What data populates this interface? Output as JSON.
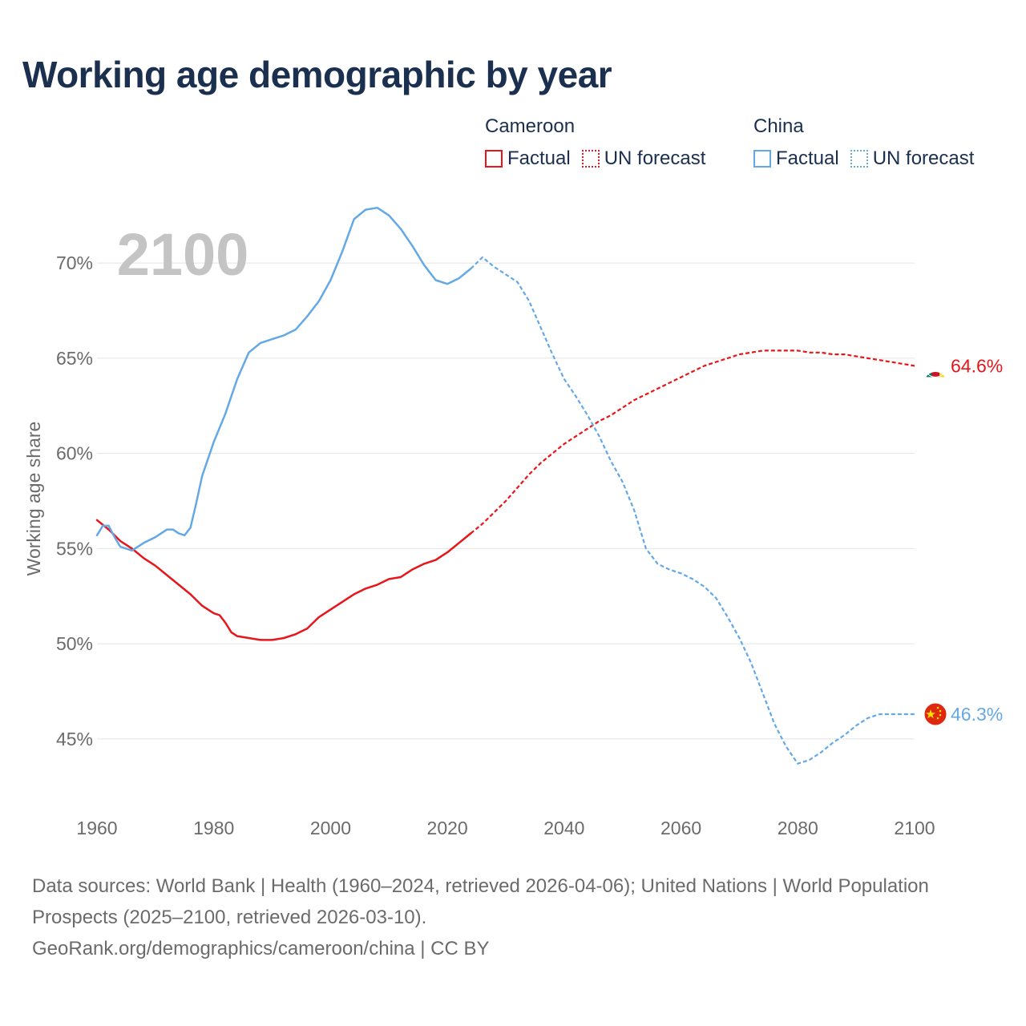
{
  "title": "Working age demographic by year",
  "legend": {
    "groups": [
      {
        "name": "Cameroon",
        "color": "#e8161a",
        "items": [
          {
            "label": "Factual",
            "style": "solid"
          },
          {
            "label": "UN forecast",
            "style": "dotted"
          }
        ]
      },
      {
        "name": "China",
        "color": "#64a8e6",
        "items": [
          {
            "label": "Factual",
            "style": "solid"
          },
          {
            "label": "UN forecast",
            "style": "dotted"
          }
        ]
      }
    ]
  },
  "footer": {
    "sources": "Data sources: World Bank | Health (1960–2024, retrieved 2026-04-06); United Nations | World Population Prospects (2025–2100, retrieved 2026-03-10).",
    "attribution": "GeoRank.org/demographics/cameroon/china | CC BY"
  },
  "chart_data": {
    "type": "line",
    "title": "Working age demographic by year",
    "year_watermark": "2100",
    "xlabel": "",
    "ylabel": "Working age share",
    "xlim": [
      1960,
      2100
    ],
    "ylim": [
      41.5,
      73.5
    ],
    "xticks": [
      1960,
      1980,
      2000,
      2020,
      2040,
      2060,
      2080,
      2100
    ],
    "yticks": [
      45,
      50,
      55,
      60,
      65,
      70
    ],
    "ytick_labels": [
      "45%",
      "50%",
      "55%",
      "60%",
      "65%",
      "70%"
    ],
    "grid": true,
    "factual_end": 2024,
    "series": [
      {
        "name": "Cameroon",
        "color": "#e8161a",
        "end_label": "64.6%",
        "flag": "cameroon-flag",
        "x": [
          1960,
          1962,
          1964,
          1966,
          1968,
          1970,
          1972,
          1974,
          1976,
          1978,
          1980,
          1981,
          1982,
          1983,
          1984,
          1986,
          1988,
          1990,
          1992,
          1994,
          1996,
          1998,
          2000,
          2002,
          2004,
          2006,
          2008,
          2010,
          2012,
          2014,
          2016,
          2018,
          2020,
          2022,
          2024,
          2026,
          2028,
          2030,
          2032,
          2034,
          2036,
          2038,
          2040,
          2042,
          2044,
          2046,
          2048,
          2050,
          2052,
          2054,
          2056,
          2058,
          2060,
          2062,
          2064,
          2066,
          2068,
          2070,
          2072,
          2074,
          2076,
          2078,
          2080,
          2082,
          2084,
          2086,
          2088,
          2090,
          2092,
          2094,
          2096,
          2098,
          2100
        ],
        "y": [
          56.5,
          56.0,
          55.4,
          55.0,
          54.5,
          54.1,
          53.6,
          53.1,
          52.6,
          52.0,
          51.6,
          51.5,
          51.1,
          50.6,
          50.4,
          50.3,
          50.2,
          50.2,
          50.3,
          50.5,
          50.8,
          51.4,
          51.8,
          52.2,
          52.6,
          52.9,
          53.1,
          53.4,
          53.5,
          53.9,
          54.2,
          54.4,
          54.8,
          55.3,
          55.8,
          56.3,
          56.9,
          57.5,
          58.2,
          58.9,
          59.5,
          60.0,
          60.5,
          60.9,
          61.3,
          61.7,
          62.0,
          62.4,
          62.8,
          63.1,
          63.4,
          63.7,
          64.0,
          64.3,
          64.6,
          64.8,
          65.0,
          65.2,
          65.3,
          65.4,
          65.4,
          65.4,
          65.4,
          65.3,
          65.3,
          65.2,
          65.2,
          65.1,
          65.0,
          64.9,
          64.8,
          64.7,
          64.6
        ]
      },
      {
        "name": "China",
        "color": "#64a8e6",
        "end_label": "46.3%",
        "flag": "china-flag",
        "x": [
          1960,
          1961,
          1962,
          1963,
          1964,
          1966,
          1968,
          1970,
          1972,
          1973,
          1974,
          1975,
          1976,
          1977,
          1978,
          1980,
          1982,
          1984,
          1986,
          1988,
          1990,
          1992,
          1994,
          1996,
          1998,
          2000,
          2002,
          2004,
          2006,
          2008,
          2010,
          2012,
          2014,
          2016,
          2018,
          2020,
          2022,
          2024,
          2026,
          2028,
          2030,
          2032,
          2034,
          2036,
          2038,
          2040,
          2042,
          2044,
          2046,
          2048,
          2050,
          2052,
          2054,
          2056,
          2058,
          2060,
          2062,
          2064,
          2066,
          2068,
          2070,
          2072,
          2074,
          2076,
          2078,
          2080,
          2082,
          2084,
          2086,
          2088,
          2090,
          2092,
          2094,
          2096,
          2098,
          2100
        ],
        "y": [
          55.7,
          56.2,
          56.2,
          55.6,
          55.1,
          54.9,
          55.3,
          55.6,
          56.0,
          56.0,
          55.8,
          55.7,
          56.1,
          57.4,
          58.8,
          60.6,
          62.1,
          63.9,
          65.3,
          65.8,
          66.0,
          66.2,
          66.5,
          67.2,
          68.0,
          69.1,
          70.6,
          72.3,
          72.8,
          72.9,
          72.5,
          71.8,
          70.9,
          69.9,
          69.1,
          68.9,
          69.2,
          69.7,
          70.3,
          69.8,
          69.4,
          69.0,
          68.0,
          66.6,
          65.2,
          63.9,
          63.0,
          62.0,
          60.9,
          59.6,
          58.5,
          57.0,
          55.0,
          54.2,
          53.9,
          53.7,
          53.4,
          53.0,
          52.4,
          51.4,
          50.3,
          49.0,
          47.4,
          45.8,
          44.6,
          43.7,
          43.9,
          44.3,
          44.8,
          45.2,
          45.7,
          46.1,
          46.3,
          46.3,
          46.3,
          46.3
        ]
      }
    ]
  }
}
